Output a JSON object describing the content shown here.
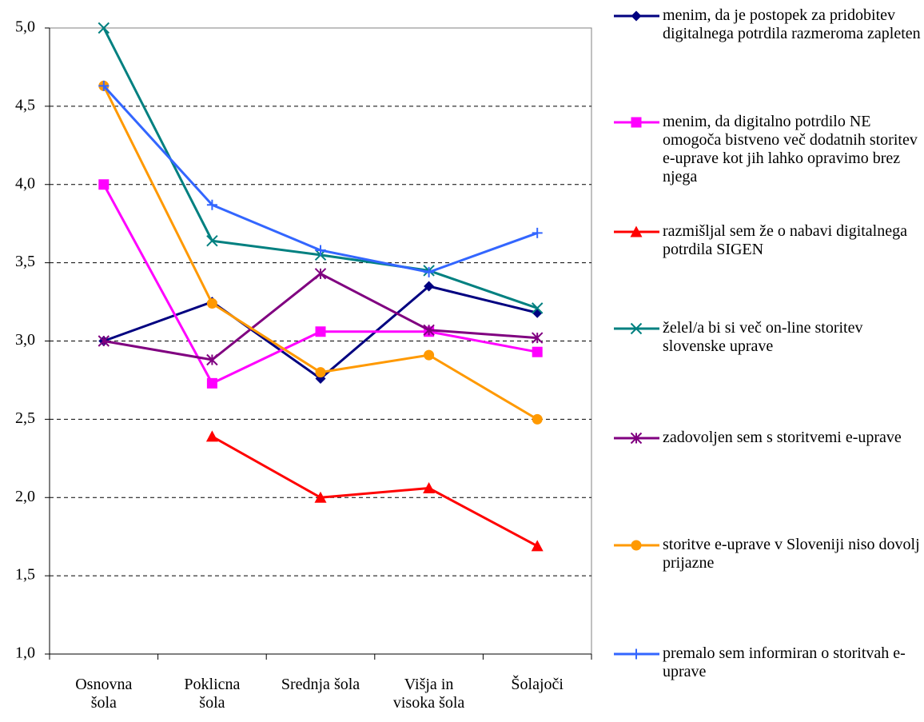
{
  "chart_data": {
    "type": "line",
    "categories": [
      "Osnovna šola",
      "Poklicna šola",
      "Srednja šola",
      "Višja in visoka šola",
      "Šolajoči"
    ],
    "ylim": [
      1.0,
      5.0
    ],
    "yticks": [
      {
        "value": 1.0,
        "label": "1,0"
      },
      {
        "value": 1.5,
        "label": "1,5"
      },
      {
        "value": 2.0,
        "label": "2,0"
      },
      {
        "value": 2.5,
        "label": "2,5"
      },
      {
        "value": 3.0,
        "label": "3,0"
      },
      {
        "value": 3.5,
        "label": "3,5"
      },
      {
        "value": 4.0,
        "label": "4,0"
      },
      {
        "value": 4.5,
        "label": "4,5"
      },
      {
        "value": 5.0,
        "label": "5,0"
      }
    ],
    "grid": true,
    "legend": "right",
    "series": [
      {
        "name": "menim, da je postopek za pridobitev digitalnega potrdila razmeroma zapleten",
        "color": "#000080",
        "marker": "diamond",
        "values": [
          3.0,
          3.25,
          2.76,
          3.35,
          3.18
        ]
      },
      {
        "name": "menim, da digitalno potrdilo NE omogoča bistveno več dodatnih storitev e-uprave kot jih lahko opravimo brez njega",
        "color": "#ff00ff",
        "marker": "square",
        "values": [
          4.0,
          2.73,
          3.06,
          3.06,
          2.93
        ]
      },
      {
        "name": "razmišljal sem že o nabavi digitalnega potrdila SIGEN",
        "color": "#ff0000",
        "marker": "triangle",
        "values": [
          null,
          2.39,
          2.0,
          2.06,
          1.69
        ]
      },
      {
        "name": "želel/a bi si več on-line storitev slovenske uprave",
        "color": "#008080",
        "marker": "x",
        "values": [
          5.0,
          3.64,
          3.55,
          3.45,
          3.21
        ]
      },
      {
        "name": "zadovoljen sem s storitvemi e-uprave",
        "color": "#800080",
        "marker": "star",
        "values": [
          3.0,
          2.88,
          3.43,
          3.07,
          3.02
        ]
      },
      {
        "name": "storitve e-uprave v Sloveniji niso dovolj prijazne",
        "color": "#ff9900",
        "marker": "circle",
        "values": [
          4.63,
          3.24,
          2.8,
          2.91,
          2.5
        ]
      },
      {
        "name": "premalo sem informiran o storitvah e-uprave",
        "color": "#3366ff",
        "marker": "plus",
        "values": [
          4.63,
          3.87,
          3.58,
          3.44,
          3.69
        ]
      }
    ]
  }
}
